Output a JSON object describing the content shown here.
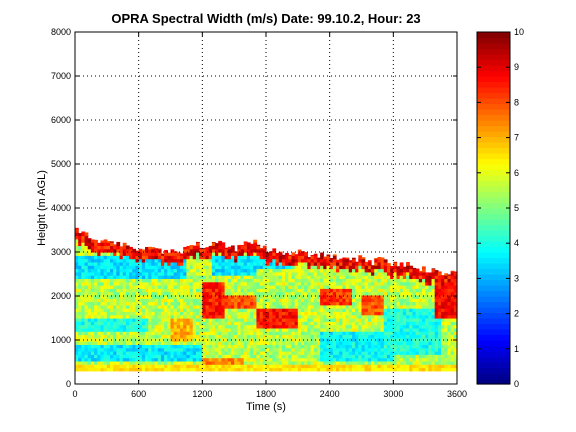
{
  "chart_data": {
    "type": "heatmap",
    "title": "OPRA Spectral Width (m/s)  Date: 99.10.2, Hour: 23",
    "xlabel": "Time (s)",
    "ylabel": "Height (m AGL)",
    "xlim": [
      0,
      3600
    ],
    "ylim": [
      0,
      8000
    ],
    "x_ticks": [
      "0",
      "600",
      "1200",
      "1800",
      "2400",
      "3000",
      "3600"
    ],
    "y_ticks": [
      "0",
      "1000",
      "2000",
      "3000",
      "4000",
      "5000",
      "6000",
      "7000",
      "8000"
    ],
    "grid": true,
    "colorbar": {
      "range": [
        0,
        10
      ],
      "ticks": [
        "0",
        "1",
        "2",
        "3",
        "4",
        "5",
        "6",
        "7",
        "8",
        "9",
        "10"
      ],
      "colormap": "jet"
    },
    "data_extent": {
      "height_min": 300,
      "height_max": 3600
    },
    "top_profile": [
      {
        "x": 0,
        "y": 3550
      },
      {
        "x": 60,
        "y": 3450
      },
      {
        "x": 120,
        "y": 3400
      },
      {
        "x": 200,
        "y": 3300
      },
      {
        "x": 300,
        "y": 3250
      },
      {
        "x": 450,
        "y": 3200
      },
      {
        "x": 600,
        "y": 3100
      },
      {
        "x": 800,
        "y": 3050
      },
      {
        "x": 1000,
        "y": 3000
      },
      {
        "x": 1100,
        "y": 3100
      },
      {
        "x": 1150,
        "y": 3300
      },
      {
        "x": 1200,
        "y": 3000
      },
      {
        "x": 1300,
        "y": 3150
      },
      {
        "x": 1400,
        "y": 3200
      },
      {
        "x": 1500,
        "y": 3050
      },
      {
        "x": 1600,
        "y": 3250
      },
      {
        "x": 1700,
        "y": 3200
      },
      {
        "x": 1800,
        "y": 3050
      },
      {
        "x": 1900,
        "y": 3000
      },
      {
        "x": 2000,
        "y": 2950
      },
      {
        "x": 2100,
        "y": 3000
      },
      {
        "x": 2200,
        "y": 2900
      },
      {
        "x": 2300,
        "y": 2950
      },
      {
        "x": 2400,
        "y": 2900
      },
      {
        "x": 2500,
        "y": 2850
      },
      {
        "x": 2600,
        "y": 2800
      },
      {
        "x": 2700,
        "y": 2900
      },
      {
        "x": 2800,
        "y": 2750
      },
      {
        "x": 2900,
        "y": 2850
      },
      {
        "x": 3000,
        "y": 2700
      },
      {
        "x": 3100,
        "y": 2750
      },
      {
        "x": 3200,
        "y": 2600
      },
      {
        "x": 3300,
        "y": 2600
      },
      {
        "x": 3400,
        "y": 2550
      },
      {
        "x": 3500,
        "y": 2550
      },
      {
        "x": 3600,
        "y": 2550
      }
    ],
    "features": [
      {
        "x0": 0,
        "x1": 1050,
        "y0": 2400,
        "y1": 2950,
        "value": 3.5
      },
      {
        "x0": 0,
        "x1": 700,
        "y0": 1200,
        "y1": 1500,
        "value": 4.0
      },
      {
        "x0": 0,
        "x1": 1200,
        "y0": 500,
        "y1": 900,
        "value": 3.6
      },
      {
        "x0": 1300,
        "x1": 1700,
        "y0": 2500,
        "y1": 2900,
        "value": 3.5
      },
      {
        "x0": 1500,
        "x1": 2050,
        "y0": 2600,
        "y1": 2950,
        "value": 3.5
      },
      {
        "x0": 2300,
        "x1": 3000,
        "y0": 500,
        "y1": 1200,
        "value": 3.8
      },
      {
        "x0": 2900,
        "x1": 3450,
        "y0": 700,
        "y1": 1700,
        "value": 4.0
      },
      {
        "x0": 1200,
        "x1": 1400,
        "y0": 1500,
        "y1": 2300,
        "value": 8.5
      },
      {
        "x0": 1400,
        "x1": 1700,
        "y0": 1700,
        "y1": 2000,
        "value": 8.0
      },
      {
        "x0": 1700,
        "x1": 2100,
        "y0": 1300,
        "y1": 1700,
        "value": 8.6
      },
      {
        "x0": 2300,
        "x1": 2600,
        "y0": 1800,
        "y1": 2200,
        "value": 8.2
      },
      {
        "x0": 2700,
        "x1": 2900,
        "y0": 1600,
        "y1": 2000,
        "value": 8.0
      },
      {
        "x0": 3400,
        "x1": 3600,
        "y0": 1500,
        "y1": 2500,
        "value": 8.8
      },
      {
        "x0": 900,
        "x1": 1100,
        "y0": 1000,
        "y1": 1500,
        "value": 7.0
      },
      {
        "x0": 1200,
        "x1": 1600,
        "y0": 300,
        "y1": 600,
        "value": 7.5
      }
    ],
    "near_surface_band": {
      "y0": 300,
      "y1": 420,
      "value": 6.5
    }
  }
}
